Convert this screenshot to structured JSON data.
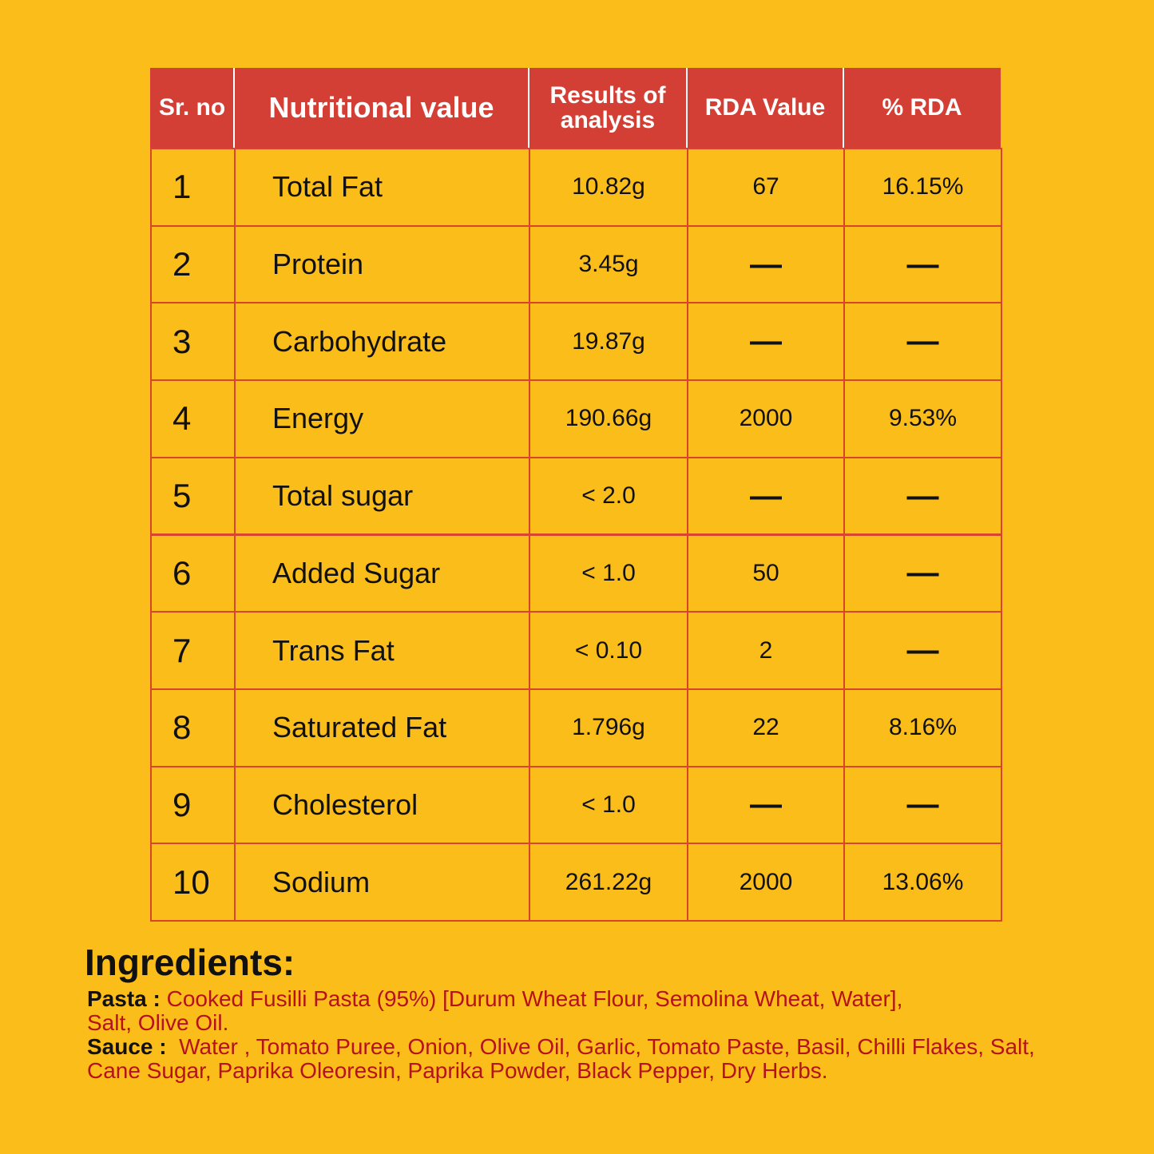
{
  "table": {
    "headers": [
      "Sr. no",
      "Nutritional value",
      "Results of analysis",
      "RDA Value",
      "% RDA"
    ],
    "rows": [
      [
        "1",
        "Total Fat",
        "10.82g",
        "67",
        "16.15%"
      ],
      [
        "2",
        "Protein",
        "3.45g",
        "—",
        "—"
      ],
      [
        "3",
        "Carbohydrate",
        "19.87g",
        "—",
        "—"
      ],
      [
        "4",
        "Energy",
        "190.66g",
        "2000",
        "9.53%"
      ],
      [
        "5",
        "Total sugar",
        "< 2.0",
        "—",
        "—"
      ],
      [
        "6",
        "Added Sugar",
        "< 1.0",
        "50",
        "—"
      ],
      [
        "7",
        "Trans Fat",
        "< 0.10",
        "2",
        "—"
      ],
      [
        "8",
        "Saturated Fat",
        "1.796g",
        "22",
        "8.16%"
      ],
      [
        "9",
        "Cholesterol",
        "< 1.0",
        "—",
        "—"
      ],
      [
        "10",
        "Sodium",
        "261.22g",
        "2000",
        "13.06%"
      ]
    ]
  },
  "ingredients": {
    "title": "Ingredients:",
    "pasta": {
      "label": "Pasta :",
      "lines": [
        "Cooked Fusilli Pasta (95%)  [Durum Wheat Flour, Semolina Wheat, Water],",
        "Salt, Olive Oil."
      ]
    },
    "sauce": {
      "label": "Sauce :",
      "lines": [
        "Water , Tomato Puree, Onion, Olive Oil, Garlic, Tomato Paste, Basil, Chilli Flakes, Salt,",
        "Cane Sugar, Paprika Oleoresin, Paprika Powder, Black Pepper, Dry Herbs."
      ]
    }
  }
}
